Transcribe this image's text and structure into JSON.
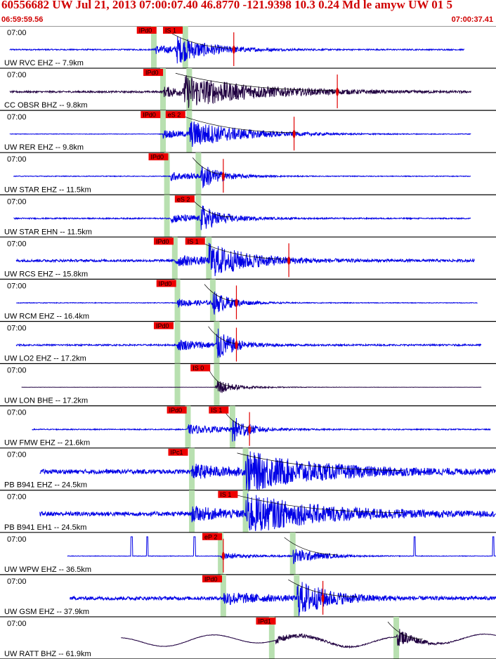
{
  "header": {
    "title": "60556682 UW Jul 21, 2013 07:00:07.40   46.8770 -121.9398 10.3 0.24 Md le amyw UW 01    5",
    "start_time": "06:59:59.56",
    "end_time": "07:00:37.41"
  },
  "window": {
    "start_s": -0.44,
    "end_s": 37.41
  },
  "colors": {
    "title": "#d00000",
    "trace": "#0000e6",
    "trace_alt": "#200040",
    "pick_box": "#ee0000",
    "pick_band": "#b8e0b0",
    "separator": "#000000"
  },
  "traces": [
    {
      "time_label": "07:00",
      "station": "UW RVC EHZ -- 7.9km",
      "color": "#0000e6",
      "ampl": 0.6,
      "noise": 0.05,
      "t0": 0.3,
      "t1": 35.0,
      "bands": [
        {
          "t": 11.3,
          "w": 0.3
        },
        {
          "t": 13.7,
          "w": 0.3
        }
      ],
      "picks": [
        {
          "t": 10.0,
          "label": "IPd0"
        },
        {
          "t": 12.0,
          "label": "IS 1"
        }
      ],
      "p": 11.3,
      "s": 13.0,
      "coda": 17.3,
      "markers": [
        17.4
      ]
    },
    {
      "time_label": "07:00",
      "station": "CC OBSR BHZ -- 9.8km",
      "color": "#200040",
      "ampl": 0.7,
      "noise": 0.06,
      "t0": 0.3,
      "t1": 35.5,
      "bands": [
        {
          "t": 12.0,
          "w": 0.4
        },
        {
          "t": 14.0,
          "w": 0.4
        }
      ],
      "picks": [
        {
          "t": 10.5,
          "label": "IPd0"
        }
      ],
      "p": 12.0,
      "s": 13.6,
      "coda": 25.0,
      "markers": [
        25.3
      ]
    },
    {
      "time_label": "07:00",
      "station": "UW RER EHZ -- 9.8km",
      "color": "#0000e6",
      "ampl": 0.6,
      "noise": 0.02,
      "t0": 0.3,
      "t1": 35.5,
      "bands": [
        {
          "t": 12.0,
          "w": 0.3
        },
        {
          "t": 14.0,
          "w": 0.3
        }
      ],
      "picks": [
        {
          "t": 10.3,
          "label": "IPd0"
        },
        {
          "t": 12.2,
          "label": "eS 2"
        }
      ],
      "p": 12.0,
      "s": 14.0,
      "coda": 22.0,
      "markers": [
        22.0
      ]
    },
    {
      "time_label": "07:00",
      "station": "UW STAR EHZ -- 11.5km",
      "color": "#0000e6",
      "ampl": 0.6,
      "noise": 0.03,
      "t0": 0.6,
      "t1": 35.5,
      "bands": [
        {
          "t": 12.3,
          "w": 0.3
        },
        {
          "t": 14.7,
          "w": 0.3
        }
      ],
      "picks": [
        {
          "t": 10.9,
          "label": "IPd0"
        }
      ],
      "p": 12.6,
      "s": 14.9,
      "coda": 16.6,
      "markers": [
        16.6
      ]
    },
    {
      "time_label": "07:00",
      "station": "UW STAR EHN -- 11.5km",
      "color": "#0000e6",
      "ampl": 0.6,
      "noise": 0.05,
      "t0": 0.6,
      "t1": 35.5,
      "bands": [
        {
          "t": 12.3,
          "w": 0.3
        },
        {
          "t": 14.7,
          "w": 0.3
        }
      ],
      "picks": [
        {
          "t": 12.9,
          "label": "eS 2"
        }
      ],
      "p": 12.6,
      "s": 14.9,
      "coda": 17.0,
      "markers": []
    },
    {
      "time_label": "07:00",
      "station": "UW RCS EHZ -- 15.8km",
      "color": "#0000e6",
      "ampl": 0.75,
      "noise": 0.08,
      "t0": 0.8,
      "t1": 35.8,
      "bands": [
        {
          "t": 12.9,
          "w": 0.3
        },
        {
          "t": 15.5,
          "w": 0.3
        }
      ],
      "picks": [
        {
          "t": 11.3,
          "label": "IPd0"
        },
        {
          "t": 13.7,
          "label": "IS 1"
        }
      ],
      "p": 12.9,
      "s": 15.5,
      "coda": 21.5,
      "markers": [
        21.6
      ]
    },
    {
      "time_label": "07:00",
      "station": "UW RCM EHZ -- 16.4km",
      "color": "#0000e6",
      "ampl": 0.55,
      "noise": 0.03,
      "t0": 0.8,
      "t1": 36.0,
      "bands": [
        {
          "t": 13.1,
          "w": 0.3
        },
        {
          "t": 15.8,
          "w": 0.3
        }
      ],
      "picks": [
        {
          "t": 11.5,
          "label": "IPd0"
        }
      ],
      "p": 13.1,
      "s": 15.8,
      "coda": 17.5,
      "markers": [
        17.6
      ]
    },
    {
      "time_label": "07:00",
      "station": "UW LO2 EHZ -- 17.2km",
      "color": "#0000e6",
      "ampl": 0.75,
      "noise": 0.05,
      "t0": 0.8,
      "t1": 36.3,
      "bands": [
        {
          "t": 13.1,
          "w": 0.3
        },
        {
          "t": 16.1,
          "w": 0.3
        }
      ],
      "picks": [
        {
          "t": 11.3,
          "label": "IPd0"
        }
      ],
      "p": 13.1,
      "s": 16.1,
      "coda": 17.5,
      "markers": [
        17.6
      ]
    },
    {
      "time_label": "07:00",
      "station": "UW LON BHE -- 17.2km",
      "color": "#200040",
      "ampl": 0.35,
      "noise": 0.01,
      "t0": 1.2,
      "t1": 36.3,
      "bands": [
        {
          "t": 13.1,
          "w": 0.3
        },
        {
          "t": 16.1,
          "w": 0.3
        }
      ],
      "picks": [
        {
          "t": 14.1,
          "label": "IS 0"
        }
      ],
      "p": 16.0,
      "s": 16.1,
      "coda": 16.8,
      "markers": []
    },
    {
      "time_label": "07:00",
      "station": "UW FMW EHZ -- 21.6km",
      "color": "#0000e6",
      "ampl": 0.65,
      "noise": 0.04,
      "t0": 2.0,
      "t1": 37.0,
      "bands": [
        {
          "t": 13.9,
          "w": 0.3
        },
        {
          "t": 17.3,
          "w": 0.3
        }
      ],
      "picks": [
        {
          "t": 12.3,
          "label": "IPd0"
        },
        {
          "t": 15.5,
          "label": "IS 1"
        }
      ],
      "p": 13.9,
      "s": 17.3,
      "coda": 18.6,
      "markers": [
        18.6
      ]
    },
    {
      "time_label": "07:00",
      "station": "PB B941 EHZ -- 24.5km",
      "color": "#0000e6",
      "ampl": 0.9,
      "noise": 0.12,
      "t0": 2.6,
      "t1": 37.5,
      "bands": [
        {
          "t": 14.2,
          "w": 0.3
        },
        {
          "t": 18.3,
          "w": 0.3
        }
      ],
      "picks": [
        {
          "t": 12.4,
          "label": "IPc1"
        }
      ],
      "p": 14.2,
      "s": 18.3,
      "coda": 30.0,
      "markers": []
    },
    {
      "time_label": "07:00",
      "station": "PB B941 EH1 -- 24.5km",
      "color": "#0000e6",
      "ampl": 0.9,
      "noise": 0.12,
      "t0": 2.6,
      "t1": 37.5,
      "bands": [
        {
          "t": 14.2,
          "w": 0.3
        },
        {
          "t": 18.3,
          "w": 0.3
        }
      ],
      "picks": [
        {
          "t": 16.2,
          "label": "IS 1"
        }
      ],
      "p": 14.2,
      "s": 18.3,
      "coda": 30.0,
      "markers": []
    },
    {
      "time_label": "07:00",
      "station": "UW WPW EHZ -- 36.5km",
      "color": "#0000e6",
      "ampl": 0.4,
      "noise": 0.03,
      "t0": 4.7,
      "t1": 39.5,
      "bands": [
        {
          "t": 16.4,
          "w": 0.3
        },
        {
          "t": 21.9,
          "w": 0.3
        }
      ],
      "picks": [
        {
          "t": 15.0,
          "label": "eP 2"
        }
      ],
      "p": 16.4,
      "s": 21.9,
      "coda": 25.0,
      "markers": [
        16.6
      ],
      "spikes": [
        9.6,
        10.8,
        14.4,
        31.2,
        37.2
      ]
    },
    {
      "time_label": "07:00",
      "station": "UW GSM EHZ -- 37.9km",
      "color": "#0000e6",
      "ampl": 0.85,
      "noise": 0.1,
      "t0": 4.9,
      "t1": 39.9,
      "bands": [
        {
          "t": 16.6,
          "w": 0.3
        },
        {
          "t": 22.2,
          "w": 0.3
        }
      ],
      "picks": [
        {
          "t": 15.0,
          "label": "IPd0"
        }
      ],
      "p": 16.6,
      "s": 22.2,
      "coda": 26.5,
      "markers": [
        24.2
      ]
    },
    {
      "time_label": "07:00",
      "station": "UW RATT BHZ -- 61.9km",
      "color": "#200040",
      "ampl": 0.5,
      "noise": 0.02,
      "t0": 8.8,
      "t1": 44.0,
      "bands": [
        {
          "t": 20.3,
          "w": 0.3
        },
        {
          "t": 29.8,
          "w": 0.3
        }
      ],
      "picks": [
        {
          "t": 19.1,
          "label": "IPd1"
        }
      ],
      "p": 20.6,
      "s": 29.8,
      "coda": 31.5,
      "markers": [],
      "longwave": true
    }
  ]
}
